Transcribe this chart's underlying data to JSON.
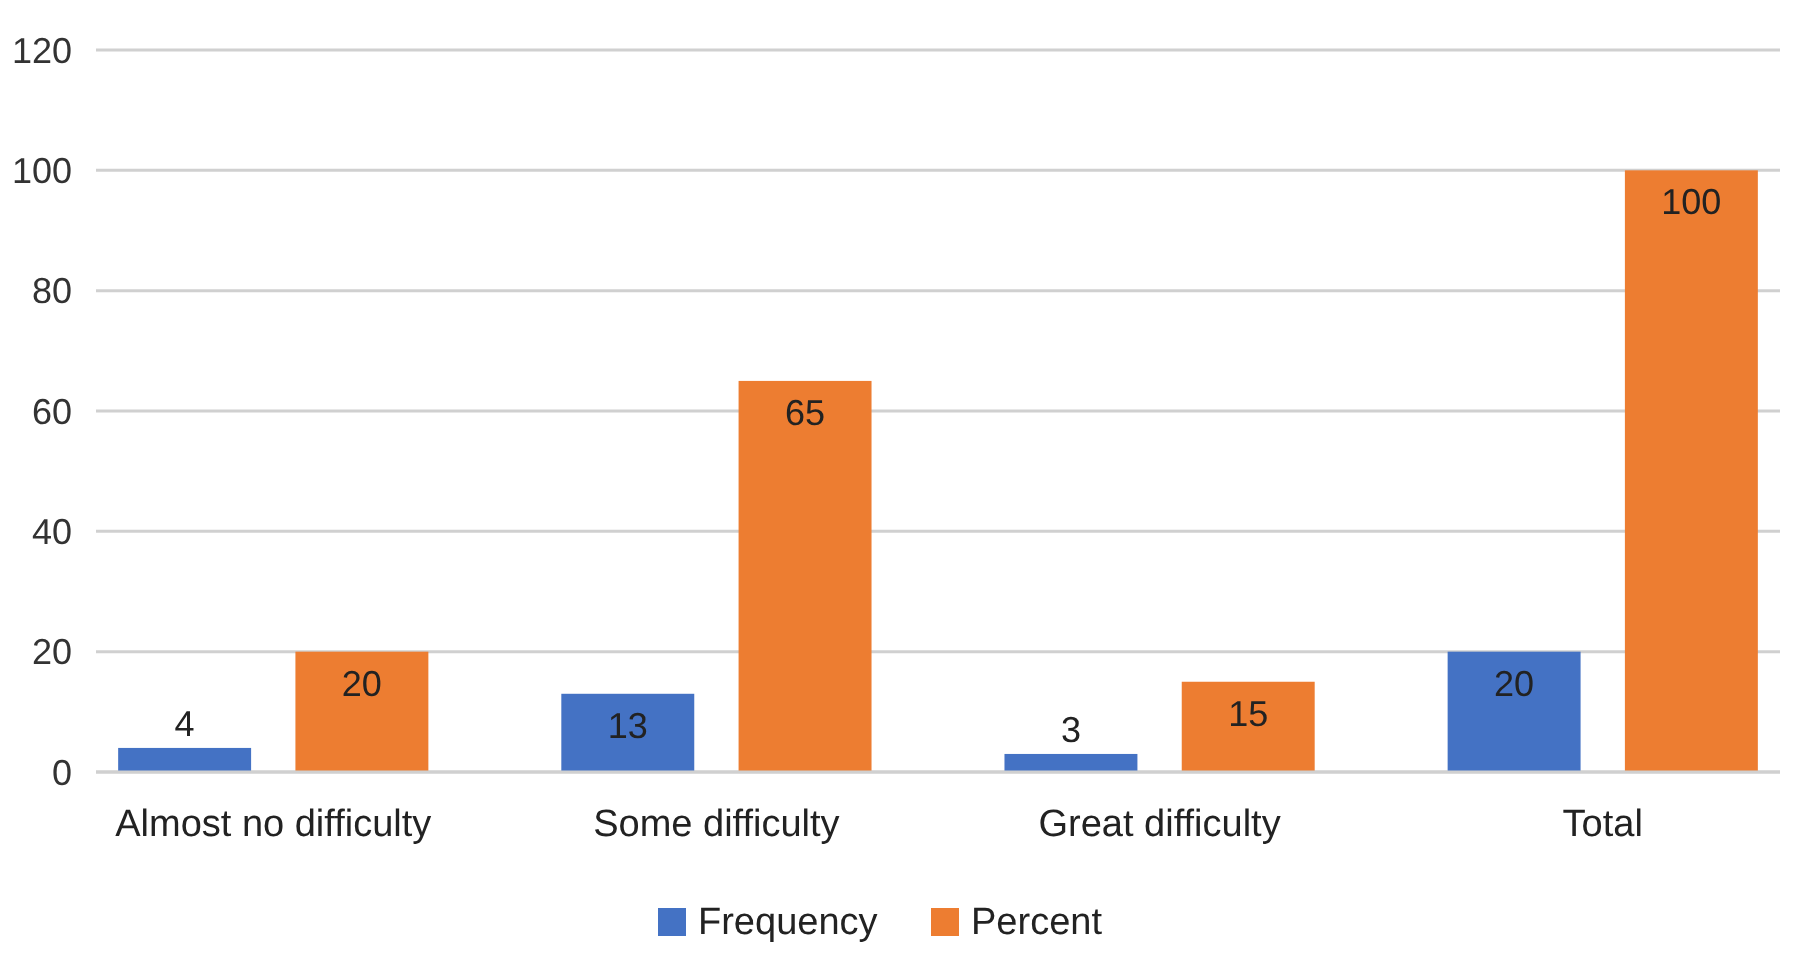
{
  "chart_data": {
    "type": "bar",
    "categories": [
      "Almost no difficulty",
      "Some difficulty",
      "Great difficulty",
      "Total"
    ],
    "series": [
      {
        "name": "Frequency",
        "color": "#4472c4",
        "values": [
          4,
          13,
          3,
          20
        ]
      },
      {
        "name": "Percent",
        "color": "#ed7d31",
        "values": [
          20,
          65,
          15,
          100
        ]
      }
    ],
    "ylim": [
      0,
      120
    ],
    "yticks": [
      0,
      20,
      40,
      60,
      80,
      100,
      120
    ],
    "grid": "y",
    "legend": "bottom",
    "data_labels": true
  }
}
